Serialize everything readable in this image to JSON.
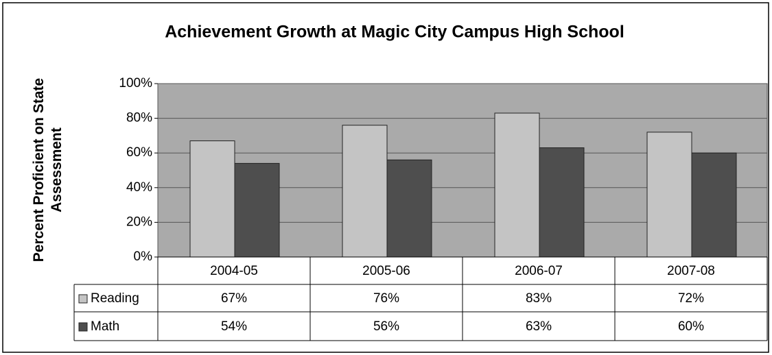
{
  "chart_data": {
    "type": "bar",
    "title": "Achievement Growth at Magic City Campus High School",
    "ylabel": [
      "Percent Proficient on State",
      "Assessment"
    ],
    "categories": [
      "2004-05",
      "2005-06",
      "2006-07",
      "2007-08"
    ],
    "series": [
      {
        "name": "Reading",
        "color": "#c4c4c4",
        "values": [
          67,
          76,
          83,
          72
        ],
        "value_labels": [
          "67%",
          "76%",
          "83%",
          "72%"
        ]
      },
      {
        "name": "Math",
        "color": "#4e4e4e",
        "values": [
          54,
          56,
          63,
          60
        ],
        "value_labels": [
          "54%",
          "56%",
          "63%",
          "60%"
        ]
      }
    ],
    "ylim": [
      0,
      100
    ],
    "yticks": [
      {
        "value": 0,
        "label": "0%"
      },
      {
        "value": 20,
        "label": "20%"
      },
      {
        "value": 40,
        "label": "40%"
      },
      {
        "value": 60,
        "label": "60%"
      },
      {
        "value": 80,
        "label": "80%"
      },
      {
        "value": 100,
        "label": "100%"
      }
    ],
    "grid": true
  }
}
